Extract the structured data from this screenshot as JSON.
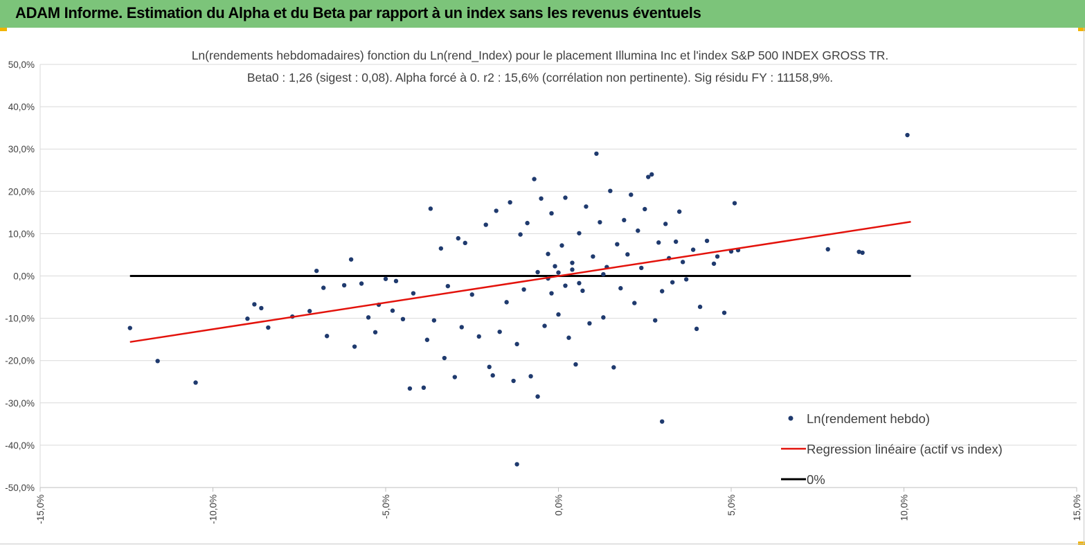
{
  "window": {
    "title": "ADAM Informe. Estimation du Alpha et du Beta par rapport à un index sans les revenus éventuels"
  },
  "colors": {
    "banner": "#7cc47a",
    "corner_marker": "#f0b400",
    "points": "#1f3a6e",
    "regression": "#e3120b",
    "zero_line": "#000000",
    "grid": "#d9d9d9"
  },
  "chart_data": {
    "type": "scatter",
    "title": "Ln(rendements hebdomadaires) fonction du Ln(rend_Index) pour le placement Illumina Inc et l'index S&P 500 INDEX GROSS TR.",
    "subtitle": "Beta0 : 1,26 (sigest : 0,08). Alpha forcé à 0. r2 : 15,6% (corrélation non pertinente). Sig résidu FY : 11158,9%.",
    "xlabel": "",
    "ylabel": "",
    "xlim": [
      -15,
      15
    ],
    "ylim": [
      -50,
      50
    ],
    "x_ticks": [
      -15,
      -10,
      -5,
      0,
      5,
      10,
      15
    ],
    "y_ticks": [
      50,
      40,
      30,
      20,
      10,
      0,
      -10,
      -20,
      -30,
      -40,
      -50
    ],
    "x_tick_labels": [
      "-15,0%",
      "-10,0%",
      "-5,0%",
      "0,0%",
      "5,0%",
      "10,0%",
      "15,0%"
    ],
    "y_tick_labels": [
      "50,0%",
      "40,0%",
      "30,0%",
      "20,0%",
      "10,0%",
      "0,0%",
      "-10,0%",
      "-20,0%",
      "-30,0%",
      "-40,0%",
      "-50,0%"
    ],
    "grid": "horizontal",
    "legend_position": "bottom-right",
    "legend": [
      {
        "label": "Ln(rendement hebdo)",
        "kind": "marker"
      },
      {
        "label": "Regression linéaire (actif vs index)",
        "kind": "line"
      },
      {
        "label": "0%",
        "kind": "line"
      }
    ],
    "series": [
      {
        "name": "Ln(rendement hebdo)",
        "kind": "scatter",
        "points": [
          [
            -12.4,
            -12.3
          ],
          [
            -11.6,
            -20.1
          ],
          [
            -10.5,
            -25.2
          ],
          [
            -9.0,
            -10.1
          ],
          [
            -8.8,
            -6.7
          ],
          [
            -8.6,
            -7.6
          ],
          [
            -8.4,
            -12.2
          ],
          [
            -7.7,
            -9.6
          ],
          [
            -7.2,
            -8.3
          ],
          [
            -7.0,
            1.2
          ],
          [
            -6.8,
            -2.8
          ],
          [
            -6.7,
            -14.2
          ],
          [
            -6.2,
            -2.2
          ],
          [
            -6.0,
            3.9
          ],
          [
            -5.9,
            -16.7
          ],
          [
            -5.7,
            -1.8
          ],
          [
            -5.5,
            -9.8
          ],
          [
            -5.3,
            -13.3
          ],
          [
            -5.2,
            -6.8
          ],
          [
            -5.0,
            -0.7
          ],
          [
            -4.8,
            -8.2
          ],
          [
            -4.7,
            -1.2
          ],
          [
            -4.5,
            -10.2
          ],
          [
            -4.3,
            -26.6
          ],
          [
            -4.2,
            -4.1
          ],
          [
            -3.9,
            -26.4
          ],
          [
            -3.8,
            -15.1
          ],
          [
            -3.7,
            15.9
          ],
          [
            -3.6,
            -10.5
          ],
          [
            -3.4,
            6.5
          ],
          [
            -3.3,
            -19.4
          ],
          [
            -3.2,
            -2.4
          ],
          [
            -3.0,
            -23.9
          ],
          [
            -2.9,
            8.9
          ],
          [
            -2.8,
            -12.1
          ],
          [
            -2.7,
            7.8
          ],
          [
            -2.5,
            -4.4
          ],
          [
            -2.3,
            -14.3
          ],
          [
            -2.1,
            12.1
          ],
          [
            -2.0,
            -21.5
          ],
          [
            -1.9,
            -23.5
          ],
          [
            -1.8,
            15.4
          ],
          [
            -1.7,
            -13.2
          ],
          [
            -1.5,
            -6.2
          ],
          [
            -1.4,
            17.4
          ],
          [
            -1.3,
            -24.8
          ],
          [
            -1.2,
            -16.1
          ],
          [
            -1.1,
            9.8
          ],
          [
            -1.0,
            -3.2
          ],
          [
            -0.9,
            12.5
          ],
          [
            -0.8,
            -23.7
          ],
          [
            -0.7,
            22.9
          ],
          [
            -0.6,
            -28.5
          ],
          [
            -0.5,
            18.3
          ],
          [
            -0.4,
            -11.8
          ],
          [
            -0.3,
            5.2
          ],
          [
            -0.2,
            14.8
          ],
          [
            -0.2,
            -4.1
          ],
          [
            -0.1,
            2.3
          ],
          [
            0.0,
            0.8
          ],
          [
            0.0,
            -9.1
          ],
          [
            0.1,
            7.2
          ],
          [
            0.2,
            18.5
          ],
          [
            0.3,
            -14.6
          ],
          [
            0.4,
            1.5
          ],
          [
            0.5,
            -20.9
          ],
          [
            0.6,
            10.1
          ],
          [
            0.7,
            -3.5
          ],
          [
            0.8,
            16.4
          ],
          [
            0.9,
            -11.2
          ],
          [
            1.0,
            4.6
          ],
          [
            1.1,
            28.9
          ],
          [
            1.2,
            12.7
          ],
          [
            1.3,
            -9.8
          ],
          [
            1.4,
            2.1
          ],
          [
            1.5,
            20.1
          ],
          [
            1.6,
            -21.6
          ],
          [
            1.7,
            7.5
          ],
          [
            1.8,
            -2.9
          ],
          [
            1.9,
            13.2
          ],
          [
            2.0,
            5.1
          ],
          [
            2.1,
            19.2
          ],
          [
            2.2,
            -6.4
          ],
          [
            2.3,
            10.7
          ],
          [
            2.4,
            1.9
          ],
          [
            2.5,
            15.8
          ],
          [
            2.6,
            23.4
          ],
          [
            2.7,
            24.0
          ],
          [
            2.8,
            -10.5
          ],
          [
            2.9,
            7.9
          ],
          [
            3.0,
            -3.6
          ],
          [
            3.0,
            -34.4
          ],
          [
            3.1,
            12.3
          ],
          [
            3.2,
            4.2
          ],
          [
            3.3,
            -1.5
          ],
          [
            3.4,
            8.1
          ],
          [
            3.5,
            15.2
          ],
          [
            3.6,
            3.3
          ],
          [
            3.7,
            -0.8
          ],
          [
            3.9,
            6.2
          ],
          [
            4.0,
            -12.5
          ],
          [
            4.1,
            -7.3
          ],
          [
            4.3,
            8.3
          ],
          [
            4.5,
            2.9
          ],
          [
            4.6,
            4.6
          ],
          [
            4.8,
            -8.7
          ],
          [
            5.0,
            5.8
          ],
          [
            5.1,
            17.2
          ],
          [
            5.2,
            6.1
          ],
          [
            7.8,
            6.3
          ],
          [
            8.7,
            5.7
          ],
          [
            8.8,
            5.5
          ],
          [
            10.1,
            33.3
          ],
          [
            -1.2,
            -44.5
          ],
          [
            0.4,
            3.1
          ],
          [
            0.6,
            -1.7
          ],
          [
            -0.6,
            0.9
          ],
          [
            1.3,
            0.4
          ],
          [
            0.2,
            -2.3
          ],
          [
            -0.3,
            -0.6
          ]
        ]
      },
      {
        "name": "Regression linéaire (actif vs index)",
        "kind": "line",
        "x": [
          -12.4,
          10.2
        ],
        "y": [
          -15.6,
          12.8
        ]
      },
      {
        "name": "0%",
        "kind": "line",
        "x": [
          -12.4,
          10.2
        ],
        "y": [
          0,
          0
        ]
      }
    ]
  }
}
